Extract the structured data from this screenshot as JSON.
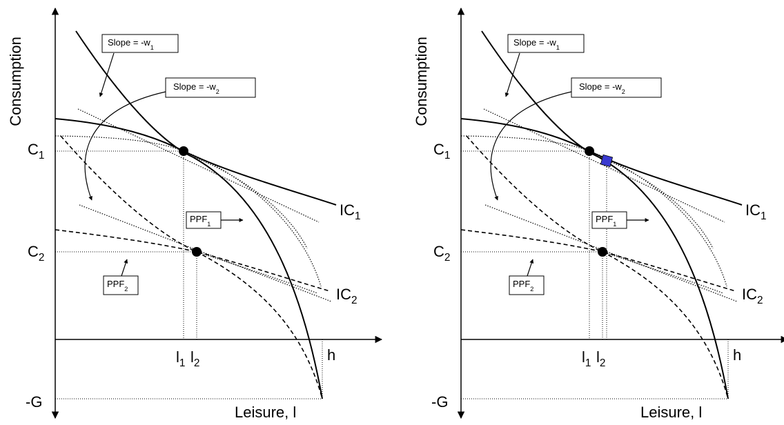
{
  "panels": [
    {
      "y_axis_label": "Consumption",
      "x_axis_label": "Leisure, l",
      "c1": {
        "base": "C",
        "sub": "1"
      },
      "c2": {
        "base": "C",
        "sub": "2"
      },
      "neg_g": "-G",
      "h": "h",
      "l1": {
        "base": "l",
        "sub": "1"
      },
      "l2": {
        "base": "l",
        "sub": "2"
      },
      "ic1": {
        "base": "IC",
        "sub": "1"
      },
      "ic2": {
        "base": "IC",
        "sub": "2"
      },
      "ppf1": {
        "base": "PPF",
        "sub": "1"
      },
      "ppf2": {
        "base": "PPF",
        "sub": "2"
      },
      "slope1": {
        "base": "Slope = -w",
        "sub": "1"
      },
      "slope2": {
        "base": "Slope = -w",
        "sub": "2"
      }
    },
    {
      "y_axis_label": "Consumption",
      "x_axis_label": "Leisure, l",
      "c1": {
        "base": "C",
        "sub": "1"
      },
      "c2": {
        "base": "C",
        "sub": "2"
      },
      "neg_g": "-G",
      "h": "h",
      "l1": {
        "base": "l",
        "sub": "1"
      },
      "l2": {
        "base": "l",
        "sub": "2"
      },
      "ic1": {
        "base": "IC",
        "sub": "1"
      },
      "ic2": {
        "base": "IC",
        "sub": "2"
      },
      "ppf1": {
        "base": "PPF",
        "sub": "1"
      },
      "ppf2": {
        "base": "PPF",
        "sub": "2"
      },
      "slope1": {
        "base": "Slope = -w",
        "sub": "1"
      },
      "slope2": {
        "base": "Slope = -w",
        "sub": "2"
      }
    }
  ]
}
